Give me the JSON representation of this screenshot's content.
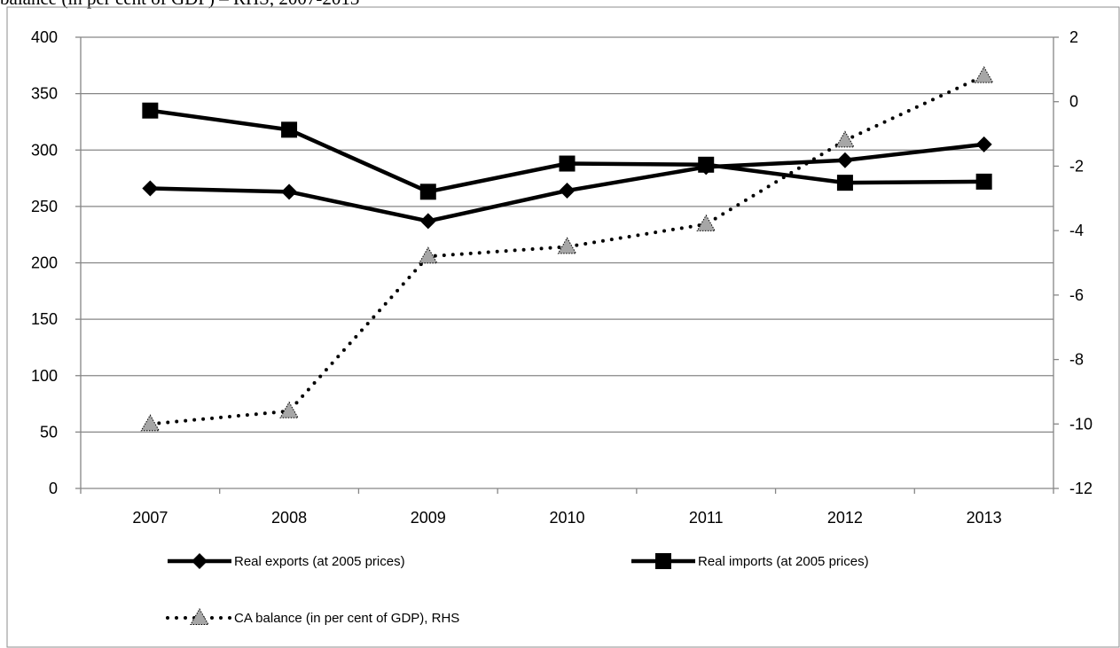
{
  "caption": "balance (in per cent of GDP) – RHS, 2007-2013",
  "chart_data": {
    "type": "line",
    "title": "",
    "xlabel": "",
    "ylabel": "",
    "categories": [
      "2007",
      "2008",
      "2009",
      "2010",
      "2011",
      "2012",
      "2013"
    ],
    "ylim_left": [
      0,
      400
    ],
    "yticks_left": [
      0,
      50,
      100,
      150,
      200,
      250,
      300,
      350,
      400
    ],
    "ylim_right": [
      -12,
      2
    ],
    "yticks_right": [
      -12,
      -10,
      -8,
      -6,
      -4,
      -2,
      0,
      2
    ],
    "grid": "horizontal",
    "legend_placement": "bottom",
    "series": [
      {
        "name": "Real exports (at 2005 prices)",
        "axis": "left",
        "marker": "diamond",
        "line_style": "solid",
        "color": "#000000",
        "values": [
          266,
          263,
          237,
          264,
          285,
          291,
          305
        ]
      },
      {
        "name": "Real imports (at 2005 prices)",
        "axis": "left",
        "marker": "square",
        "line_style": "solid",
        "color": "#000000",
        "values": [
          335,
          318,
          263,
          288,
          287,
          271,
          272
        ]
      },
      {
        "name": "CA balance (in per cent of GDP), RHS",
        "axis": "right",
        "marker": "triangle",
        "line_style": "dotted",
        "color": "#000000",
        "marker_color": "#a6a6a6",
        "values": [
          -10.0,
          -9.6,
          -4.8,
          -4.5,
          -3.8,
          -1.2,
          0.8
        ]
      }
    ]
  }
}
